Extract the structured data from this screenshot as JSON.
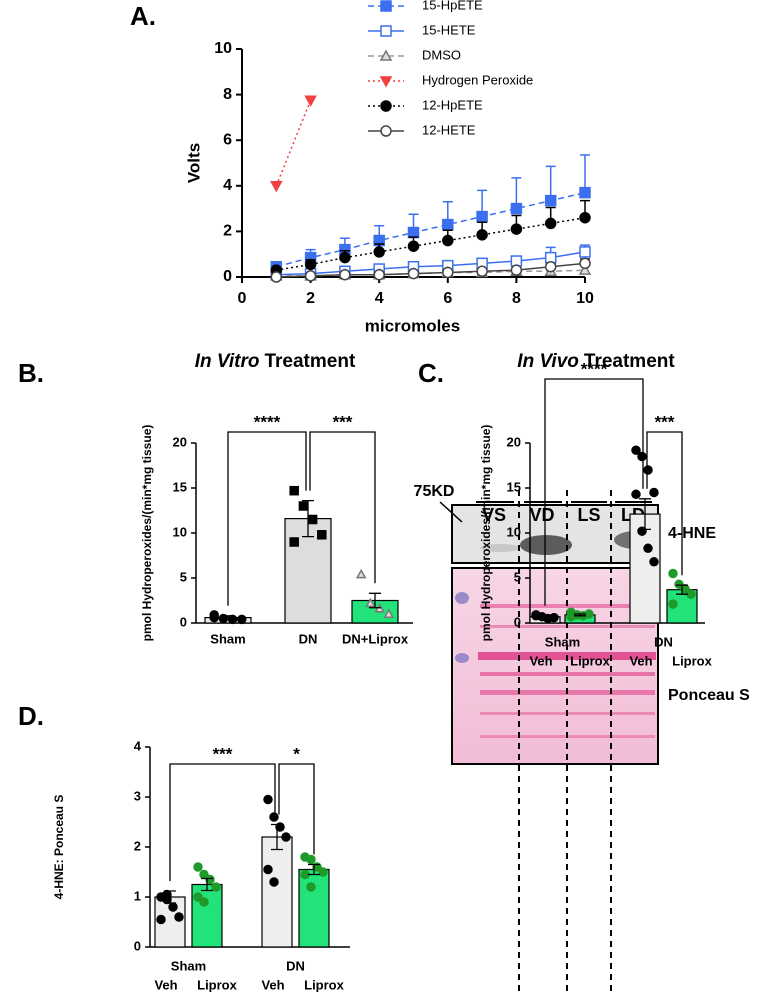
{
  "chart_data": [
    {
      "type": "line",
      "panel": "A.",
      "xlabel": "micromoles",
      "ylabel": "Volts",
      "x": [
        1,
        2,
        3,
        4,
        5,
        6,
        7,
        8,
        9,
        10
      ],
      "xlim": [
        0,
        10
      ],
      "xticks": [
        0,
        2,
        4,
        6,
        8,
        10
      ],
      "ylim": [
        0,
        10
      ],
      "yticks": [
        0,
        2,
        4,
        6,
        8,
        10
      ],
      "legend": "top-right",
      "series": [
        {
          "name": "15-HpETE",
          "color": "#3b6ff0",
          "dash": "dashed",
          "marker": "square",
          "values": [
            0.45,
            0.85,
            1.2,
            1.6,
            1.95,
            2.3,
            2.65,
            3.0,
            3.35,
            3.7
          ],
          "errors": [
            0.1,
            0.35,
            0.5,
            0.65,
            0.8,
            1.0,
            1.15,
            1.35,
            1.5,
            1.65
          ]
        },
        {
          "name": "15-HETE",
          "color": "#3b6ff0",
          "dash": "solid",
          "marker": "square-open",
          "values": [
            0.1,
            0.15,
            0.25,
            0.35,
            0.45,
            0.5,
            0.6,
            0.7,
            0.85,
            1.1
          ],
          "errors": [
            0.05,
            0.05,
            0.1,
            0.1,
            0.1,
            0.1,
            0.1,
            0.15,
            0.45,
            0.3
          ]
        },
        {
          "name": "DMSO",
          "color": "#999999",
          "dash": "dashed",
          "marker": "triangle",
          "values": [
            0.05,
            0.05,
            0.1,
            0.1,
            0.15,
            0.2,
            0.2,
            0.25,
            0.25,
            0.3
          ],
          "errors": [
            0.05,
            0.05,
            0.05,
            0.05,
            0.05,
            0.1,
            0.1,
            0.1,
            0.15,
            0.2
          ]
        },
        {
          "name": "Hydrogen Peroxide",
          "color": "#f04040",
          "dash": "dotted",
          "marker": "triangle-down",
          "values": [
            4.0,
            7.75,
            null,
            null,
            null,
            null,
            null,
            null,
            null,
            null
          ],
          "errors": [
            null,
            null,
            null,
            null,
            null,
            null,
            null,
            null,
            null,
            null
          ]
        },
        {
          "name": "12-HpETE",
          "color": "#000000",
          "dash": "dotted",
          "marker": "circle",
          "values": [
            0.3,
            0.55,
            0.85,
            1.1,
            1.35,
            1.6,
            1.85,
            2.1,
            2.35,
            2.6
          ],
          "errors": [
            0.1,
            0.2,
            0.3,
            0.35,
            0.4,
            0.45,
            0.55,
            0.6,
            0.7,
            0.75
          ]
        },
        {
          "name": "12-HETE",
          "color": "#444444",
          "dash": "solid",
          "marker": "circle-open",
          "values": [
            0.0,
            0.05,
            0.1,
            0.1,
            0.15,
            0.2,
            0.25,
            0.3,
            0.45,
            0.6
          ],
          "errors": [
            0.02,
            0.05,
            0.05,
            0.05,
            0.05,
            0.1,
            0.1,
            0.1,
            0.15,
            0.2
          ]
        }
      ]
    },
    {
      "type": "bar",
      "panel": "B.",
      "title_italic": "In Vitro",
      "title": "Treatment",
      "ylabel": "pmol Hydroperoxides/(min*mg tissue)",
      "categories": [
        "Sham",
        "DN",
        "DN+Liprox"
      ],
      "values": [
        0.6,
        11.6,
        2.5
      ],
      "errors": [
        0.2,
        2.0,
        0.8
      ],
      "colors": [
        "#eeeeee",
        "#dddddd",
        "#22e27a"
      ],
      "point_colors": [
        "#000000",
        "#000000",
        "#1f9a2a"
      ],
      "point_marker": [
        "circle",
        "square",
        "triangle"
      ],
      "points": [
        [
          0.9,
          0.5,
          0.4,
          0.4,
          0.6
        ],
        [
          14.7,
          13.0,
          11.5,
          9.8,
          9.0
        ],
        [
          5.4,
          2.2,
          1.6,
          1.0
        ]
      ],
      "ylim": [
        0,
        20
      ],
      "yticks": [
        0,
        5,
        10,
        15,
        20
      ],
      "annotations": [
        {
          "text": "****",
          "between": [
            0,
            1
          ]
        },
        {
          "text": "***",
          "between": [
            1,
            2
          ]
        }
      ]
    },
    {
      "type": "bar",
      "panel": "C.",
      "title_italic": "In Vivo",
      "title": "Treatment",
      "ylabel": "pmol Hydroperoxides/(min*mg tissue)",
      "groups": [
        "Sham",
        "DN"
      ],
      "categories": [
        "Veh",
        "Liprox",
        "Veh",
        "Liprox"
      ],
      "values": [
        0.7,
        0.9,
        12.1,
        3.7
      ],
      "errors": [
        0.1,
        0.1,
        1.7,
        0.5
      ],
      "colors": [
        "#eeeeee",
        "#22e27a",
        "#eeeeee",
        "#22e27a"
      ],
      "point_colors": [
        "#000000",
        "#1f9a2a",
        "#000000",
        "#1f9a2a"
      ],
      "point_marker": [
        "circle",
        "circle",
        "circle",
        "circle"
      ],
      "points": [
        [
          0.9,
          0.7,
          0.5,
          0.6,
          0.8
        ],
        [
          1.2,
          0.9,
          0.8,
          1.0,
          0.7
        ],
        [
          19.2,
          18.5,
          17.0,
          14.5,
          14.3,
          10.2,
          8.3,
          6.8
        ],
        [
          5.5,
          4.3,
          3.8,
          3.2,
          2.1
        ]
      ],
      "ylim": [
        0,
        20
      ],
      "yticks": [
        0,
        5,
        10,
        15,
        20
      ],
      "annotations": [
        {
          "text": "****",
          "between": [
            0,
            2
          ]
        },
        {
          "text": "***",
          "between": [
            2,
            3
          ]
        }
      ]
    },
    {
      "type": "bar",
      "panel": "D.",
      "ylabel": "4-HNE: Ponceau  S",
      "groups": [
        "Sham",
        "DN"
      ],
      "categories": [
        "Veh",
        "Liprox",
        "Veh",
        "Liprox"
      ],
      "values": [
        1.0,
        1.25,
        2.2,
        1.55
      ],
      "errors": [
        0.12,
        0.12,
        0.25,
        0.1
      ],
      "colors": [
        "#eeeeee",
        "#22e27a",
        "#eeeeee",
        "#22e27a"
      ],
      "point_colors": [
        "#000000",
        "#1f9a2a",
        "#000000",
        "#1f9a2a"
      ],
      "point_marker": [
        "circle",
        "circle",
        "circle",
        "circle"
      ],
      "points": [
        [
          1.0,
          0.95,
          0.8,
          0.6,
          0.55,
          1.05
        ],
        [
          1.6,
          1.45,
          1.35,
          1.2,
          1.0,
          0.9
        ],
        [
          2.95,
          2.6,
          2.4,
          2.2,
          1.55,
          1.3
        ],
        [
          1.8,
          1.75,
          1.6,
          1.5,
          1.45,
          1.2
        ]
      ],
      "ylim": [
        0,
        4
      ],
      "yticks": [
        0,
        1,
        2,
        3,
        4
      ],
      "annotations": [
        {
          "text": "***",
          "between": [
            0,
            2
          ]
        },
        {
          "text": "*",
          "between": [
            2,
            3
          ]
        }
      ]
    }
  ],
  "blot": {
    "marker": "75KD",
    "lanes": [
      "VS",
      "VD",
      "LS",
      "LD"
    ],
    "top_label": "4-HNE",
    "bottom_label": "Ponceau S"
  }
}
